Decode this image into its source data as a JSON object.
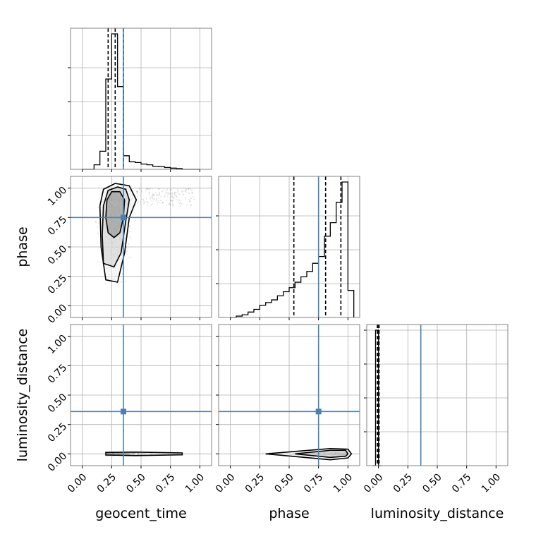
{
  "chart_data": {
    "type": "corner",
    "parameters": [
      "geocent_time",
      "phase",
      "luminosity_distance"
    ],
    "tick_labels": [
      "0.00",
      "0.25",
      "0.50",
      "0.75",
      "1.00"
    ],
    "axis_range": [
      -0.1,
      1.1
    ],
    "truth_values": {
      "geocent_time": 0.35,
      "phase": 0.75,
      "luminosity_distance": 0.36
    },
    "colors": {
      "truth": "#4682b4",
      "hist": "#000000",
      "grid": "#b0b0b0",
      "frame": "#808080"
    },
    "marginals": [
      {
        "parameter": "geocent_time",
        "bin_edges": [
          0.0,
          0.05,
          0.1,
          0.15,
          0.2,
          0.25,
          0.3,
          0.35,
          0.4,
          0.45,
          0.5,
          0.55,
          0.6,
          0.65,
          0.7,
          0.75,
          0.8,
          0.85,
          0.9,
          0.95,
          1.0
        ],
        "counts": [
          0,
          0,
          0.03,
          0.12,
          0.6,
          0.9,
          0.55,
          0.09,
          0.05,
          0.045,
          0.035,
          0.03,
          0.02,
          0.018,
          0.012,
          0.008,
          0.005,
          0,
          0,
          0
        ],
        "quantiles": [
          0.22,
          0.28,
          0.35
        ],
        "grid_y": [
          0.25,
          0.5,
          0.75
        ]
      },
      {
        "parameter": "phase",
        "bin_edges": [
          0.0,
          0.05,
          0.1,
          0.15,
          0.2,
          0.25,
          0.3,
          0.35,
          0.4,
          0.45,
          0.5,
          0.55,
          0.6,
          0.65,
          0.7,
          0.75,
          0.8,
          0.85,
          0.9,
          0.95,
          1.0,
          1.05
        ],
        "counts": [
          0,
          0.01,
          0.02,
          0.04,
          0.06,
          0.09,
          0.11,
          0.13,
          0.16,
          0.19,
          0.22,
          0.26,
          0.3,
          0.34,
          0.4,
          0.45,
          0.6,
          0.7,
          0.85,
          1.0,
          0.2
        ],
        "quantiles": [
          0.54,
          0.81,
          0.94
        ],
        "grid_y": [
          0.25,
          0.5,
          0.75
        ]
      },
      {
        "parameter": "luminosity_distance",
        "bin_edges": [
          -0.05,
          -0.025,
          0.0,
          0.025
        ],
        "counts": [
          0,
          1.0,
          0
        ],
        "quantiles": [
          -0.01,
          -0.005,
          0.005
        ],
        "grid_y": [
          0.25,
          0.5,
          0.75,
          1.0
        ]
      }
    ],
    "joint": [
      {
        "x": "geocent_time",
        "y": "phase",
        "contours": [
          [
            [
              0.22,
              0.62
            ],
            [
              0.2,
              0.75
            ],
            [
              0.21,
              0.9
            ],
            [
              0.25,
              0.97
            ],
            [
              0.32,
              0.97
            ],
            [
              0.36,
              0.9
            ],
            [
              0.35,
              0.75
            ],
            [
              0.32,
              0.62
            ],
            [
              0.27,
              0.58
            ]
          ],
          [
            [
              0.18,
              0.36
            ],
            [
              0.17,
              0.6
            ],
            [
              0.18,
              0.85
            ],
            [
              0.22,
              0.98
            ],
            [
              0.3,
              1.01
            ],
            [
              0.37,
              0.99
            ],
            [
              0.4,
              0.9
            ],
            [
              0.37,
              0.72
            ],
            [
              0.33,
              0.45
            ],
            [
              0.27,
              0.33
            ]
          ],
          [
            [
              0.2,
              0.22
            ],
            [
              0.16,
              0.5
            ],
            [
              0.15,
              0.85
            ],
            [
              0.18,
              0.99
            ],
            [
              0.28,
              1.04
            ],
            [
              0.4,
              1.02
            ],
            [
              0.46,
              0.9
            ],
            [
              0.4,
              0.75
            ],
            [
              0.36,
              0.45
            ],
            [
              0.3,
              0.2
            ]
          ]
        ]
      },
      {
        "x": "geocent_time",
        "y": "luminosity_distance",
        "contours": [
          [
            [
              0.2,
              -0.01
            ],
            [
              0.45,
              -0.015
            ],
            [
              0.85,
              -0.008
            ],
            [
              0.85,
              0.008
            ],
            [
              0.45,
              0.015
            ],
            [
              0.2,
              0.012
            ]
          ]
        ]
      },
      {
        "x": "phase",
        "y": "luminosity_distance",
        "contours": [
          [
            [
              0.55,
              0.0
            ],
            [
              0.85,
              -0.03
            ],
            [
              0.98,
              -0.02
            ],
            [
              1.0,
              0.0
            ],
            [
              0.98,
              0.03
            ],
            [
              0.85,
              0.03
            ]
          ],
          [
            [
              0.3,
              0.0
            ],
            [
              0.85,
              -0.05
            ],
            [
              1.0,
              -0.035
            ],
            [
              1.03,
              0.0
            ],
            [
              1.0,
              0.04
            ],
            [
              0.85,
              0.045
            ]
          ]
        ]
      }
    ]
  }
}
